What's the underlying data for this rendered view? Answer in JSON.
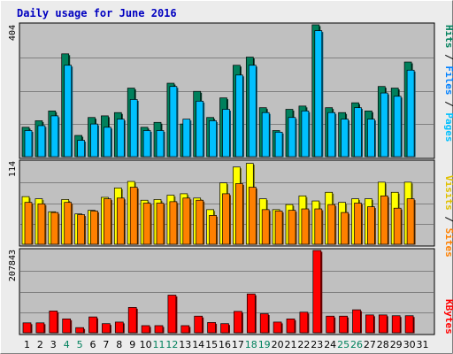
{
  "colors": {
    "background": "#ececec",
    "panel": "#c0c0c0",
    "gridline": "#808080",
    "title": "#0000c0",
    "hits": "#00805c",
    "files": "#00c0ff",
    "pages": "#00e0ff",
    "visits": "#ffff00",
    "sites": "#ff8000",
    "kbytes": "#ff0000",
    "weekend_day": "#00805c",
    "weekday": "#000000"
  },
  "chart_data": {
    "title": "Daily usage for June 2016",
    "type": "bar",
    "categories": [
      "1",
      "2",
      "3",
      "4",
      "5",
      "6",
      "7",
      "8",
      "9",
      "10",
      "11",
      "12",
      "13",
      "14",
      "15",
      "16",
      "17",
      "18",
      "19",
      "20",
      "21",
      "22",
      "23",
      "24",
      "25",
      "26",
      "27",
      "28",
      "29",
      "30",
      "31"
    ],
    "weekend_days": [
      "4",
      "5",
      "11",
      "12",
      "18",
      "19",
      "25",
      "26"
    ],
    "panels": [
      {
        "name": "hits-files-pages",
        "max_label": "404",
        "ylim": [
          0,
          404
        ],
        "grid": true,
        "legend": {
          "hits": "Hits",
          "files": "Files",
          "pages": "Pages",
          "sep": "/"
        },
        "series": [
          {
            "name": "Hits",
            "color_key": "hits",
            "values": [
              90,
              110,
              140,
              315,
              65,
              120,
              125,
              135,
              210,
              90,
              105,
              225,
              100,
              200,
              120,
              180,
              280,
              305,
              150,
              80,
              145,
              155,
              404,
              150,
              135,
              165,
              140,
              215,
              210,
              290,
              0
            ]
          },
          {
            "name": "Files",
            "color_key": "files",
            "values": [
              80,
              95,
              125,
              280,
              50,
              100,
              90,
              115,
              175,
              80,
              80,
              215,
              115,
              170,
              110,
              145,
              250,
              280,
              135,
              75,
              120,
              140,
              386,
              135,
              115,
              150,
              115,
              195,
              185,
              265,
              0
            ]
          }
        ]
      },
      {
        "name": "visits-sites",
        "max_label": "114",
        "ylim": [
          0,
          114
        ],
        "grid": true,
        "legend": {
          "visits": "Visits",
          "sites": "Sites",
          "sep": "/"
        },
        "series": [
          {
            "name": "Visits",
            "color_key": "visits",
            "values": [
              66,
              63,
              45,
              62,
              42,
              47,
              65,
              78,
              87,
              61,
              62,
              68,
              70,
              64,
              48,
              85,
              107,
              112,
              63,
              48,
              55,
              67,
              60,
              72,
              58,
              63,
              63,
              86,
              72,
              86,
              0
            ]
          },
          {
            "name": "Sites",
            "color_key": "sites",
            "values": [
              58,
              56,
              44,
              58,
              41,
              46,
              63,
              64,
              79,
              57,
              57,
              59,
              64,
              61,
              40,
              70,
              84,
              79,
              48,
              46,
              47,
              49,
              49,
              55,
              44,
              57,
              52,
              67,
              50,
              63,
              0
            ]
          }
        ]
      },
      {
        "name": "kbytes",
        "max_label": "207843",
        "ylim": [
          0,
          207843
        ],
        "grid": true,
        "legend": {
          "kbytes": "KBytes"
        },
        "series": [
          {
            "name": "KBytes",
            "color_key": "kbytes",
            "values": [
              25000,
              25000,
              55000,
              35000,
              13000,
              40000,
              23000,
              27000,
              64000,
              18000,
              18000,
              95000,
              18000,
              42000,
              26000,
              23000,
              54000,
              98000,
              48000,
              27000,
              35000,
              52000,
              207843,
              42000,
              42000,
              58000,
              45000,
              45000,
              43000,
              43000,
              0
            ]
          }
        ]
      }
    ]
  }
}
